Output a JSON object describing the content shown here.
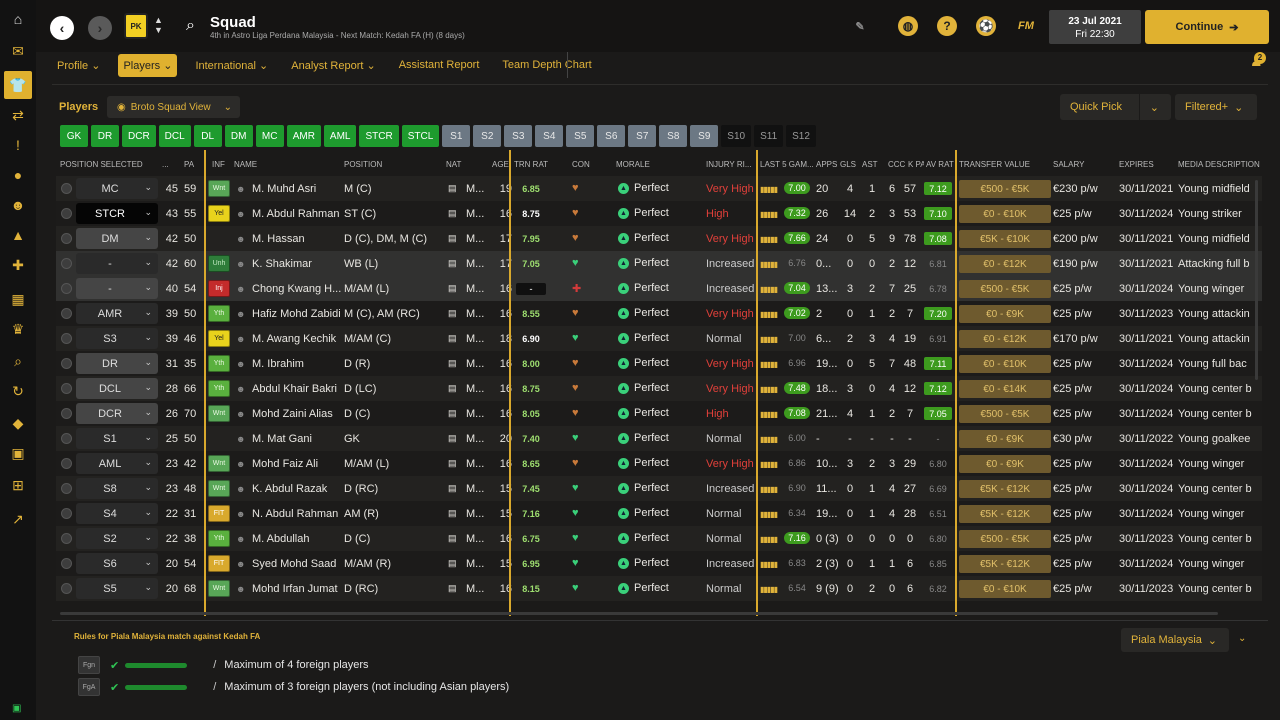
{
  "screen": {
    "title": "Squad",
    "subtitle": "4th in Astro Liga Perdana Malaysia - Next Match: Kedah FA (H) (8 days)"
  },
  "topbar": {
    "club_badge_text": "PK",
    "fm_label": "FM",
    "date": "23 Jul 2021",
    "time": "Fri 22:30",
    "continue_label": "Continue"
  },
  "tabs": [
    "Profile",
    "Players",
    "International",
    "Analyst Report",
    "Assistant Report",
    "Team Depth Chart"
  ],
  "notification_count": "2",
  "players_label": "Players",
  "view_label": "Broto Squad View",
  "quick_pick_label": "Quick Pick",
  "filtered_label": "Filtered+",
  "position_buttons": [
    "GK",
    "DR",
    "DCR",
    "DCL",
    "DL",
    "DM",
    "MC",
    "AMR",
    "AML",
    "STCR",
    "STCL",
    "S1",
    "S2",
    "S3",
    "S4",
    "S5",
    "S6",
    "S7",
    "S8",
    "S9",
    "S10",
    "S11",
    "S12"
  ],
  "columns": [
    "POSITION SELECTED",
    "...",
    "PA",
    "INF",
    "NAME",
    "POSITION",
    "NAT",
    "AGE",
    "TRN RAT",
    "CON",
    "MORALE",
    "INJURY RI...",
    "LAST 5 GAM...",
    "APPS",
    "GLS",
    "AST",
    "CCC",
    "K PAS",
    "AV RAT",
    "TRANSFER VALUE",
    "SALARY",
    "EXPIRES",
    "MEDIA DESCRIPTION"
  ],
  "rows": [
    {
      "sel": "MC",
      "ca": "45",
      "pa": "59",
      "inf": "Wnt",
      "name": "M. Muhd Asri",
      "position": "M (C)",
      "nat": "M...",
      "age": "19",
      "trn": "6.85",
      "morale": "Perfect",
      "injury": "Very High",
      "last5": "7.00",
      "apps": "20",
      "gls": "4",
      "ast": "1",
      "ccc": "6",
      "kpas": "57",
      "avrat": "7.12",
      "value": "€500 - €5K",
      "salary": "€230 p/w",
      "expires": "30/11/2021",
      "media": "Young midfield"
    },
    {
      "sel": "STCR",
      "ca": "43",
      "pa": "55",
      "inf": "Yel",
      "name": "M. Abdul Rahman",
      "position": "ST (C)",
      "nat": "M...",
      "age": "16",
      "trn": "8.75",
      "morale": "Perfect",
      "injury": "High",
      "last5": "7.32",
      "apps": "26",
      "gls": "14",
      "ast": "2",
      "ccc": "3",
      "kpas": "53",
      "avrat": "7.10",
      "value": "€0 - €10K",
      "salary": "€25 p/w",
      "expires": "30/11/2024",
      "media": "Young striker"
    },
    {
      "sel": "DM",
      "ca": "42",
      "pa": "50",
      "inf": "",
      "name": "M. Hassan",
      "position": "D (C), DM, M (C)",
      "nat": "M...",
      "age": "17",
      "trn": "7.95",
      "morale": "Perfect",
      "injury": "Very High",
      "last5": "7.66",
      "apps": "24",
      "gls": "0",
      "ast": "5",
      "ccc": "9",
      "kpas": "78",
      "avrat": "7.08",
      "value": "€5K - €10K",
      "salary": "€200 p/w",
      "expires": "30/11/2021",
      "media": "Young midfield"
    },
    {
      "sel": "-",
      "ca": "42",
      "pa": "60",
      "inf": "Unh",
      "name": "K. Shakimar",
      "position": "WB (L)",
      "nat": "M...",
      "age": "17",
      "trn": "7.05",
      "morale": "Perfect",
      "injury": "Increased",
      "last5": "6.76",
      "apps": "0...",
      "gls": "0",
      "ast": "0",
      "ccc": "2",
      "kpas": "12",
      "avrat": "6.81",
      "value": "€0 - €12K",
      "salary": "€190 p/w",
      "expires": "30/11/2021",
      "media": "Attacking full b"
    },
    {
      "sel": "-",
      "ca": "40",
      "pa": "54",
      "inf": "Inj",
      "name": "Chong Kwang H...",
      "position": "M/AM (L)",
      "nat": "M...",
      "age": "16",
      "trn": "-",
      "morale": "Perfect",
      "injury": "Increased",
      "last5": "7.04",
      "apps": "13...",
      "gls": "3",
      "ast": "2",
      "ccc": "7",
      "kpas": "25",
      "avrat": "6.78",
      "value": "€500 - €5K",
      "salary": "€25 p/w",
      "expires": "30/11/2024",
      "media": "Young winger"
    },
    {
      "sel": "AMR",
      "ca": "39",
      "pa": "50",
      "inf": "Yth",
      "name": "Hafiz Mohd Zabidi",
      "position": "M (C), AM (RC)",
      "nat": "M...",
      "age": "16",
      "trn": "8.55",
      "morale": "Perfect",
      "injury": "Very High",
      "last5": "7.02",
      "apps": "2",
      "gls": "0",
      "ast": "1",
      "ccc": "2",
      "kpas": "7",
      "avrat": "7.20",
      "value": "€0 - €9K",
      "salary": "€25 p/w",
      "expires": "30/11/2023",
      "media": "Young attackin"
    },
    {
      "sel": "S3",
      "ca": "39",
      "pa": "46",
      "inf": "Yel",
      "name": "M. Awang Kechik",
      "position": "M/AM (C)",
      "nat": "M...",
      "age": "18",
      "trn": "6.90",
      "morale": "Perfect",
      "injury": "Normal",
      "last5": "7.00",
      "apps": "6...",
      "gls": "2",
      "ast": "3",
      "ccc": "4",
      "kpas": "19",
      "avrat": "6.91",
      "value": "€0 - €12K",
      "salary": "€170 p/w",
      "expires": "30/11/2021",
      "media": "Young attackin"
    },
    {
      "sel": "DR",
      "ca": "31",
      "pa": "35",
      "inf": "Yth",
      "name": "M. Ibrahim",
      "position": "D (R)",
      "nat": "M...",
      "age": "16",
      "trn": "8.00",
      "morale": "Perfect",
      "injury": "Very High",
      "last5": "6.96",
      "apps": "19...",
      "gls": "0",
      "ast": "5",
      "ccc": "7",
      "kpas": "48",
      "avrat": "7.11",
      "value": "€0 - €10K",
      "salary": "€25 p/w",
      "expires": "30/11/2024",
      "media": "Young full bac"
    },
    {
      "sel": "DCL",
      "ca": "28",
      "pa": "66",
      "inf": "Yth",
      "name": "Abdul Khair Bakri",
      "position": "D (LC)",
      "nat": "M...",
      "age": "16",
      "trn": "8.75",
      "morale": "Perfect",
      "injury": "Very High",
      "last5": "7.48",
      "apps": "18...",
      "gls": "3",
      "ast": "0",
      "ccc": "4",
      "kpas": "12",
      "avrat": "7.12",
      "value": "€0 - €14K",
      "salary": "€25 p/w",
      "expires": "30/11/2024",
      "media": "Young center b"
    },
    {
      "sel": "DCR",
      "ca": "26",
      "pa": "70",
      "inf": "Wnt",
      "name": "Mohd Zaini Alias",
      "position": "D (C)",
      "nat": "M...",
      "age": "16",
      "trn": "8.05",
      "morale": "Perfect",
      "injury": "High",
      "last5": "7.08",
      "apps": "21...",
      "gls": "4",
      "ast": "1",
      "ccc": "2",
      "kpas": "7",
      "avrat": "7.05",
      "value": "€500 - €5K",
      "salary": "€25 p/w",
      "expires": "30/11/2024",
      "media": "Young center b"
    },
    {
      "sel": "S1",
      "ca": "25",
      "pa": "50",
      "inf": "",
      "name": "M. Mat Gani",
      "position": "GK",
      "nat": "M...",
      "age": "20",
      "trn": "7.40",
      "morale": "Perfect",
      "injury": "Normal",
      "last5": "6.00",
      "apps": "-",
      "gls": "-",
      "ast": "-",
      "ccc": "-",
      "kpas": "-",
      "avrat": "-",
      "value": "€0 - €9K",
      "salary": "€30 p/w",
      "expires": "30/11/2022",
      "media": "Young goalkee"
    },
    {
      "sel": "AML",
      "ca": "23",
      "pa": "42",
      "inf": "Wnt",
      "name": "Mohd Faiz Ali",
      "position": "M/AM (L)",
      "nat": "M...",
      "age": "16",
      "trn": "8.65",
      "morale": "Perfect",
      "injury": "Very High",
      "last5": "6.86",
      "apps": "10...",
      "gls": "3",
      "ast": "2",
      "ccc": "3",
      "kpas": "29",
      "avrat": "6.80",
      "value": "€0 - €9K",
      "salary": "€25 p/w",
      "expires": "30/11/2024",
      "media": "Young winger"
    },
    {
      "sel": "S8",
      "ca": "23",
      "pa": "48",
      "inf": "Wnt",
      "name": "K. Abdul Razak",
      "position": "D (RC)",
      "nat": "M...",
      "age": "15",
      "trn": "7.45",
      "morale": "Perfect",
      "injury": "Increased",
      "last5": "6.90",
      "apps": "11...",
      "gls": "0",
      "ast": "1",
      "ccc": "4",
      "kpas": "27",
      "avrat": "6.69",
      "value": "€5K - €12K",
      "salary": "€25 p/w",
      "expires": "30/11/2024",
      "media": "Young center b"
    },
    {
      "sel": "S4",
      "ca": "22",
      "pa": "31",
      "inf": "FIT",
      "name": "N. Abdul Rahman",
      "position": "AM (R)",
      "nat": "M...",
      "age": "15",
      "trn": "7.16",
      "morale": "Perfect",
      "injury": "Normal",
      "last5": "6.34",
      "apps": "19...",
      "gls": "0",
      "ast": "1",
      "ccc": "4",
      "kpas": "28",
      "avrat": "6.51",
      "value": "€5K - €12K",
      "salary": "€25 p/w",
      "expires": "30/11/2024",
      "media": "Young winger"
    },
    {
      "sel": "S2",
      "ca": "22",
      "pa": "38",
      "inf": "Yth",
      "name": "M. Abdullah",
      "position": "D (C)",
      "nat": "M...",
      "age": "16",
      "trn": "6.75",
      "morale": "Perfect",
      "injury": "Normal",
      "last5": "7.16",
      "apps": "0 (3)",
      "gls": "0",
      "ast": "0",
      "ccc": "0",
      "kpas": "0",
      "avrat": "6.80",
      "value": "€500 - €5K",
      "salary": "€25 p/w",
      "expires": "30/11/2023",
      "media": "Young center b"
    },
    {
      "sel": "S6",
      "ca": "20",
      "pa": "54",
      "inf": "FIT",
      "name": "Syed Mohd Saad",
      "position": "M/AM (R)",
      "nat": "M...",
      "age": "15",
      "trn": "6.95",
      "morale": "Perfect",
      "injury": "Increased",
      "last5": "6.83",
      "apps": "2 (3)",
      "gls": "0",
      "ast": "1",
      "ccc": "1",
      "kpas": "6",
      "avrat": "6.85",
      "value": "€5K - €12K",
      "salary": "€25 p/w",
      "expires": "30/11/2024",
      "media": "Young winger"
    },
    {
      "sel": "S5",
      "ca": "20",
      "pa": "68",
      "inf": "Wnt",
      "name": "Mohd Irfan Jumat",
      "position": "D (RC)",
      "nat": "M...",
      "age": "16",
      "trn": "8.15",
      "morale": "Perfect",
      "injury": "Normal",
      "last5": "6.54",
      "apps": "9 (9)",
      "gls": "0",
      "ast": "2",
      "ccc": "0",
      "kpas": "6",
      "avrat": "6.82",
      "value": "€0 - €10K",
      "salary": "€25 p/w",
      "expires": "30/11/2023",
      "media": "Young center b"
    }
  ],
  "rules": {
    "title": "Rules for Piala Malaysia match against Kedah FA",
    "items": [
      {
        "tag": "Fgn",
        "text": "Maximum of 4 foreign players"
      },
      {
        "tag": "FgA",
        "text": "Maximum of 3 foreign players (not including Asian players)"
      }
    ],
    "competition": "Piala Malaysia"
  },
  "colors": {
    "accent": "#e0b12f",
    "good": "#3d9b1e",
    "warn": "#e0403a",
    "bg": "#1b1a19"
  }
}
